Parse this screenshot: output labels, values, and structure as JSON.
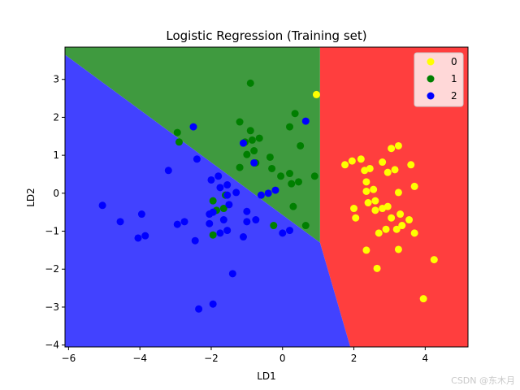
{
  "chart_data": {
    "type": "scatter",
    "title": "Logistic Regression (Training set)",
    "xlabel": "LD1",
    "ylabel": "LD2",
    "xlim": [
      -6.1,
      5.2
    ],
    "ylim": [
      -4.05,
      3.85
    ],
    "xticks": [
      -6,
      -4,
      -2,
      0,
      2,
      4
    ],
    "yticks": [
      -4,
      -3,
      -2,
      -1,
      0,
      1,
      2,
      3
    ],
    "grid": false,
    "legend_position": "top-right",
    "regions": [
      {
        "class": "0",
        "color": "#ff3e3e"
      },
      {
        "class": "1",
        "color": "#3f9a3f"
      },
      {
        "class": "2",
        "color": "#4242ff"
      }
    ],
    "series": [
      {
        "name": "0",
        "color": "#ffff00",
        "points": [
          [
            0.95,
            2.6
          ],
          [
            1.75,
            0.75
          ],
          [
            1.95,
            0.85
          ],
          [
            2.2,
            0.9
          ],
          [
            2.3,
            0.6
          ],
          [
            2.45,
            0.65
          ],
          [
            2.35,
            0.3
          ],
          [
            2.35,
            0.05
          ],
          [
            2.55,
            0.1
          ],
          [
            2.4,
            -0.25
          ],
          [
            2.6,
            -0.2
          ],
          [
            2.0,
            -0.4
          ],
          [
            2.05,
            -0.65
          ],
          [
            2.6,
            -0.45
          ],
          [
            2.8,
            -0.4
          ],
          [
            2.95,
            -0.35
          ],
          [
            2.7,
            -1.05
          ],
          [
            2.9,
            -0.95
          ],
          [
            3.2,
            -0.95
          ],
          [
            3.05,
            -0.65
          ],
          [
            3.3,
            -0.55
          ],
          [
            3.35,
            -0.85
          ],
          [
            3.55,
            -0.7
          ],
          [
            3.7,
            -1.05
          ],
          [
            2.35,
            -1.5
          ],
          [
            2.65,
            -1.98
          ],
          [
            3.25,
            -1.48
          ],
          [
            3.05,
            1.18
          ],
          [
            3.25,
            1.25
          ],
          [
            2.8,
            0.82
          ],
          [
            2.95,
            0.55
          ],
          [
            3.15,
            0.62
          ],
          [
            3.25,
            0.02
          ],
          [
            3.6,
            0.75
          ],
          [
            3.7,
            0.18
          ],
          [
            4.25,
            -1.75
          ],
          [
            3.95,
            -2.78
          ]
        ]
      },
      {
        "name": "1",
        "color": "#007f00",
        "points": [
          [
            -0.9,
            2.9
          ],
          [
            -2.95,
            1.6
          ],
          [
            -2.9,
            1.35
          ],
          [
            -1.2,
            1.88
          ],
          [
            -0.9,
            1.65
          ],
          [
            -1.05,
            1.35
          ],
          [
            -0.85,
            1.4
          ],
          [
            -0.65,
            1.45
          ],
          [
            -1.0,
            1.02
          ],
          [
            -0.8,
            1.12
          ],
          [
            -1.2,
            0.68
          ],
          [
            -0.35,
            0.95
          ],
          [
            -0.3,
            0.65
          ],
          [
            -0.05,
            0.45
          ],
          [
            0.2,
            0.52
          ],
          [
            0.25,
            0.25
          ],
          [
            0.45,
            0.3
          ],
          [
            0.5,
            1.25
          ],
          [
            0.2,
            1.75
          ],
          [
            0.35,
            2.1
          ],
          [
            0.9,
            0.45
          ],
          [
            -0.75,
            0.8
          ],
          [
            -1.6,
            -0.05
          ],
          [
            -1.85,
            -0.45
          ],
          [
            -1.65,
            -0.4
          ],
          [
            -1.95,
            -0.2
          ],
          [
            -1.95,
            -1.1
          ],
          [
            -0.25,
            -0.85
          ],
          [
            0.3,
            -0.35
          ],
          [
            0.65,
            -0.85
          ]
        ]
      },
      {
        "name": "2",
        "color": "#0000ff",
        "points": [
          [
            -2.5,
            1.75
          ],
          [
            -2.4,
            0.9
          ],
          [
            -3.2,
            0.6
          ],
          [
            -5.05,
            -0.32
          ],
          [
            -4.55,
            -0.75
          ],
          [
            -3.95,
            -0.55
          ],
          [
            -4.05,
            -1.18
          ],
          [
            -3.85,
            -1.12
          ],
          [
            -2.95,
            -0.82
          ],
          [
            -2.75,
            -0.75
          ],
          [
            -2.45,
            -1.25
          ],
          [
            -2.05,
            -0.55
          ],
          [
            -1.95,
            -0.5
          ],
          [
            -2.05,
            -0.8
          ],
          [
            -2.0,
            0.35
          ],
          [
            -1.8,
            0.45
          ],
          [
            -1.75,
            0.15
          ],
          [
            -1.55,
            0.22
          ],
          [
            -1.55,
            -0.05
          ],
          [
            -1.3,
            0.02
          ],
          [
            -1.5,
            -0.3
          ],
          [
            -1.65,
            -0.7
          ],
          [
            -1.75,
            -1.05
          ],
          [
            -1.55,
            -0.98
          ],
          [
            -1.0,
            -0.48
          ],
          [
            -1.0,
            -0.75
          ],
          [
            -0.75,
            -0.7
          ],
          [
            -1.1,
            -1.15
          ],
          [
            -1.4,
            -2.12
          ],
          [
            -2.35,
            -3.05
          ],
          [
            -1.95,
            -2.92
          ],
          [
            -0.6,
            -0.05
          ],
          [
            -0.4,
            0.0
          ],
          [
            -0.2,
            0.08
          ],
          [
            0.0,
            -1.05
          ],
          [
            0.2,
            -0.98
          ],
          [
            -1.1,
            1.32
          ],
          [
            -0.8,
            0.8
          ],
          [
            0.65,
            1.9
          ]
        ]
      }
    ]
  },
  "watermark": "CSDN @东木月"
}
